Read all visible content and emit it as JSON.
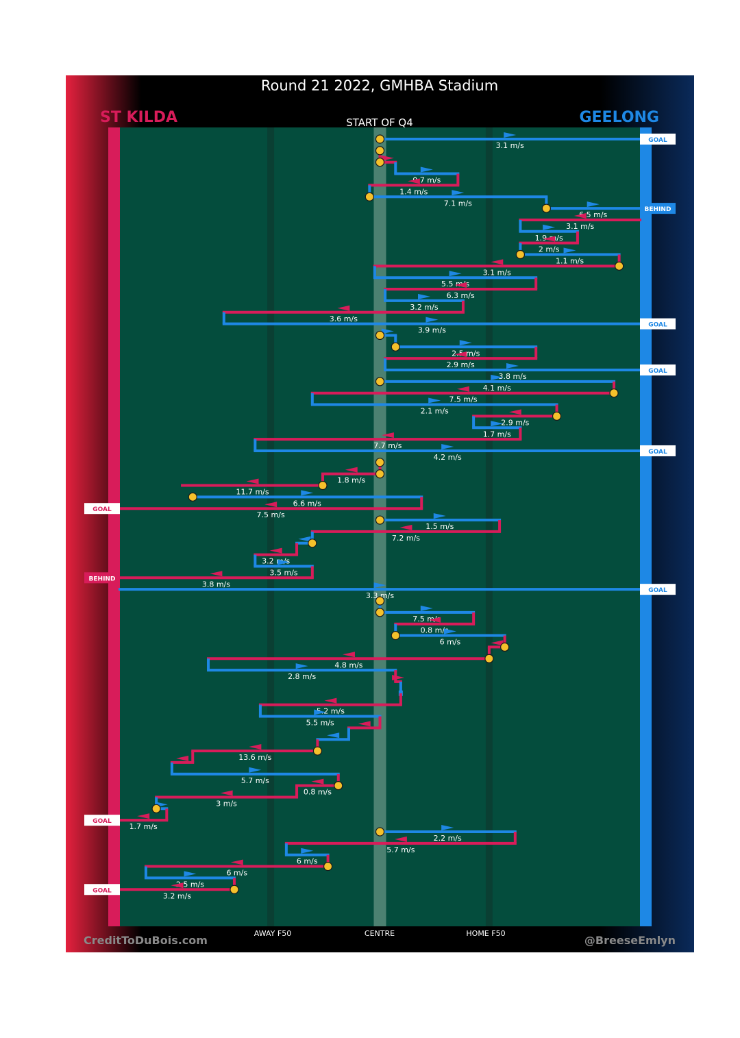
{
  "header": {
    "title": "Round 21 2022, GMHBA Stadium",
    "home_team": "ST KILDA",
    "away_team": "GEELONG",
    "quarter": "START OF Q4"
  },
  "footer": {
    "credit_left": "CreditToDuBois.com",
    "credit_right": "@BreeseEmlyn",
    "axis_labels": [
      "AWAY F50",
      "CENTRE",
      "HOME F50"
    ]
  },
  "colors": {
    "stkilda": "#d81c5a",
    "geelong": "#1e88e5",
    "field": "#044d3d",
    "band": "#0a3f33",
    "centre_band": "#5f8f7e",
    "ball": "#f5c12b",
    "label_text": "#ffffff"
  },
  "chart_data": {
    "type": "line",
    "title": "Round 21 2022, GMHBA Stadium",
    "subtitle": "START OF Q4",
    "x_axis": {
      "range": [
        0,
        100
      ],
      "meaning": "ground position from St Kilda end (0) to Geelong end (100)",
      "ticks": [
        {
          "label": "AWAY F50",
          "value": 29
        },
        {
          "label": "CENTRE",
          "value": 50
        },
        {
          "label": "HOME F50",
          "value": 71
        }
      ]
    },
    "y_axis": {
      "meaning": "chain step number, top to bottom",
      "range": [
        1,
        67
      ]
    },
    "legend": [
      "ST KILDA",
      "GEELONG"
    ],
    "chains": [
      {
        "row": 1,
        "team": "GEELONG",
        "from": 50,
        "to": 100,
        "speed": "3.1 m/s",
        "result": "GOAL"
      },
      {
        "row": 2,
        "team": "ST KILDA",
        "from": 50,
        "to": 50,
        "speed": ""
      },
      {
        "row": 3,
        "team": "ST KILDA",
        "from": 50,
        "to": 53,
        "speed": ""
      },
      {
        "row": 4,
        "team": "GEELONG",
        "from": 53,
        "to": 65,
        "speed": "0.7 m/s"
      },
      {
        "row": 5,
        "team": "ST KILDA",
        "from": 65,
        "to": 48,
        "speed": "1.4 m/s"
      },
      {
        "row": 6,
        "team": "GEELONG",
        "from": 48,
        "to": 82,
        "speed": "7.1 m/s"
      },
      {
        "row": 7,
        "team": "GEELONG",
        "from": 82,
        "to": 100,
        "speed": "6.5 m/s",
        "result": "BEHIND"
      },
      {
        "row": 8,
        "team": "ST KILDA",
        "from": 100,
        "to": 77,
        "speed": "3.1 m/s"
      },
      {
        "row": 9,
        "team": "GEELONG",
        "from": 77,
        "to": 88,
        "speed": "1.9 m/s"
      },
      {
        "row": 10,
        "team": "ST KILDA",
        "from": 88,
        "to": 77,
        "speed": "2 m/s"
      },
      {
        "row": 11,
        "team": "GEELONG",
        "from": 77,
        "to": 96,
        "speed": "1.1 m/s"
      },
      {
        "row": 12,
        "team": "ST KILDA",
        "from": 96,
        "to": 49,
        "speed": "3.1 m/s"
      },
      {
        "row": 13,
        "team": "GEELONG",
        "from": 49,
        "to": 80,
        "speed": "5.5 m/s"
      },
      {
        "row": 14,
        "team": "ST KILDA",
        "from": 80,
        "to": 51,
        "speed": "6.3 m/s"
      },
      {
        "row": 15,
        "team": "GEELONG",
        "from": 51,
        "to": 66,
        "speed": "3.2 m/s"
      },
      {
        "row": 16,
        "team": "ST KILDA",
        "from": 66,
        "to": 20,
        "speed": "3.6 m/s"
      },
      {
        "row": 17,
        "team": "GEELONG",
        "from": 20,
        "to": 100,
        "speed": "3.9 m/s",
        "result": "GOAL"
      },
      {
        "row": 18,
        "team": "GEELONG",
        "from": 50,
        "to": 53,
        "speed": ""
      },
      {
        "row": 19,
        "team": "GEELONG",
        "from": 53,
        "to": 80,
        "speed": "2.5 m/s"
      },
      {
        "row": 20,
        "team": "ST KILDA",
        "from": 80,
        "to": 51,
        "speed": "2.9 m/s"
      },
      {
        "row": 21,
        "team": "GEELONG",
        "from": 51,
        "to": 100,
        "speed": "3.8 m/s",
        "result": "GOAL"
      },
      {
        "row": 22,
        "team": "GEELONG",
        "from": 50,
        "to": 95,
        "speed": "4.1 m/s"
      },
      {
        "row": 23,
        "team": "ST KILDA",
        "from": 95,
        "to": 37,
        "speed": "7.5 m/s"
      },
      {
        "row": 24,
        "team": "GEELONG",
        "from": 37,
        "to": 84,
        "speed": "2.1 m/s"
      },
      {
        "row": 25,
        "team": "ST KILDA",
        "from": 84,
        "to": 68,
        "speed": "2.9 m/s"
      },
      {
        "row": 26,
        "team": "GEELONG",
        "from": 68,
        "to": 77,
        "speed": "1.7 m/s"
      },
      {
        "row": 27,
        "team": "ST KILDA",
        "from": 77,
        "to": 26,
        "speed": "7.7 m/s"
      },
      {
        "row": 28,
        "team": "GEELONG",
        "from": 26,
        "to": 100,
        "speed": "4.2 m/s",
        "result": "GOAL"
      },
      {
        "row": 29,
        "team": "GEELONG",
        "from": 50,
        "to": 50,
        "speed": ""
      },
      {
        "row": 30,
        "team": "ST KILDA",
        "from": 50,
        "to": 39,
        "speed": "1.8 m/s"
      },
      {
        "row": 31,
        "team": "ST KILDA",
        "from": 39,
        "to": 12,
        "speed": "11.7 m/s"
      },
      {
        "row": 32,
        "team": "GEELONG",
        "from": 14,
        "to": 58,
        "speed": "6.6 m/s"
      },
      {
        "row": 33,
        "team": "ST KILDA",
        "from": 58,
        "to": 0,
        "speed": "7.5 m/s",
        "result": "GOAL"
      },
      {
        "row": 34,
        "team": "GEELONG",
        "from": 50,
        "to": 73,
        "speed": "1.5 m/s"
      },
      {
        "row": 35,
        "team": "ST KILDA",
        "from": 73,
        "to": 37,
        "speed": "7.2 m/s"
      },
      {
        "row": 36,
        "team": "GEELONG",
        "from": 37,
        "to": 34,
        "speed": ""
      },
      {
        "row": 37,
        "team": "ST KILDA",
        "from": 34,
        "to": 26,
        "speed": "3.2 m/s"
      },
      {
        "row": 38,
        "team": "GEELONG",
        "from": 26,
        "to": 37,
        "speed": "3.5 m/s"
      },
      {
        "row": 39,
        "team": "ST KILDA",
        "from": 37,
        "to": 0,
        "speed": "3.8 m/s",
        "result": "BEHIND"
      },
      {
        "row": 40,
        "team": "GEELONG",
        "from": 0,
        "to": 100,
        "speed": "3.3 m/s",
        "result": "GOAL"
      },
      {
        "row": 41,
        "team": "ST KILDA",
        "from": 50,
        "to": 50,
        "speed": ""
      },
      {
        "row": 42,
        "team": "GEELONG",
        "from": 50,
        "to": 68,
        "speed": "7.5 m/s"
      },
      {
        "row": 43,
        "team": "ST KILDA",
        "from": 68,
        "to": 53,
        "speed": "0.8 m/s"
      },
      {
        "row": 44,
        "team": "GEELONG",
        "from": 53,
        "to": 74,
        "speed": "6 m/s"
      },
      {
        "row": 45,
        "team": "ST KILDA",
        "from": 74,
        "to": 71,
        "speed": ""
      },
      {
        "row": 46,
        "team": "ST KILDA",
        "from": 71,
        "to": 17,
        "speed": "4.8 m/s"
      },
      {
        "row": 47,
        "team": "GEELONG",
        "from": 17,
        "to": 53,
        "speed": "2.8 m/s"
      },
      {
        "row": 48,
        "team": "ST KILDA",
        "from": 53,
        "to": 54,
        "speed": ""
      },
      {
        "row": 49,
        "team": "GEELONG",
        "from": 54,
        "to": 54,
        "speed": ""
      },
      {
        "row": 50,
        "team": "ST KILDA",
        "from": 54,
        "to": 27,
        "speed": "5.2 m/s"
      },
      {
        "row": 51,
        "team": "GEELONG",
        "from": 27,
        "to": 50,
        "speed": "5.5 m/s"
      },
      {
        "row": 52,
        "team": "ST KILDA",
        "from": 50,
        "to": 44,
        "speed": ""
      },
      {
        "row": 53,
        "team": "GEELONG",
        "from": 44,
        "to": 38,
        "speed": ""
      },
      {
        "row": 54,
        "team": "ST KILDA",
        "from": 38,
        "to": 14,
        "speed": "13.6 m/s"
      },
      {
        "row": 55,
        "team": "ST KILDA",
        "from": 14,
        "to": 10,
        "speed": ""
      },
      {
        "row": 56,
        "team": "GEELONG",
        "from": 10,
        "to": 42,
        "speed": "5.7 m/s"
      },
      {
        "row": 57,
        "team": "ST KILDA",
        "from": 42,
        "to": 34,
        "speed": "0.8 m/s"
      },
      {
        "row": 58,
        "team": "ST KILDA",
        "from": 34,
        "to": 7,
        "speed": "3 m/s"
      },
      {
        "row": 59,
        "team": "GEELONG",
        "from": 7,
        "to": 9,
        "speed": ""
      },
      {
        "row": 60,
        "team": "ST KILDA",
        "from": 9,
        "to": 0,
        "speed": "1.7 m/s",
        "result": "GOAL"
      },
      {
        "row": 61,
        "team": "GEELONG",
        "from": 50,
        "to": 76,
        "speed": "2.2 m/s"
      },
      {
        "row": 62,
        "team": "ST KILDA",
        "from": 76,
        "to": 32,
        "speed": "5.7 m/s"
      },
      {
        "row": 63,
        "team": "GEELONG",
        "from": 32,
        "to": 40,
        "speed": "6 m/s"
      },
      {
        "row": 64,
        "team": "ST KILDA",
        "from": 40,
        "to": 5,
        "speed": "6 m/s"
      },
      {
        "row": 65,
        "team": "GEELONG",
        "from": 5,
        "to": 22,
        "speed": "2.5 m/s"
      },
      {
        "row": 66,
        "team": "ST KILDA",
        "from": 22,
        "to": 0,
        "speed": "3.2 m/s",
        "result": "GOAL"
      }
    ],
    "ball_ups": [
      1,
      2,
      3,
      6,
      7,
      11,
      12,
      18,
      19,
      22,
      23,
      25,
      29,
      30,
      31,
      32,
      34,
      36,
      41,
      42,
      44,
      45,
      46,
      54,
      57,
      59,
      61,
      64,
      66
    ]
  }
}
